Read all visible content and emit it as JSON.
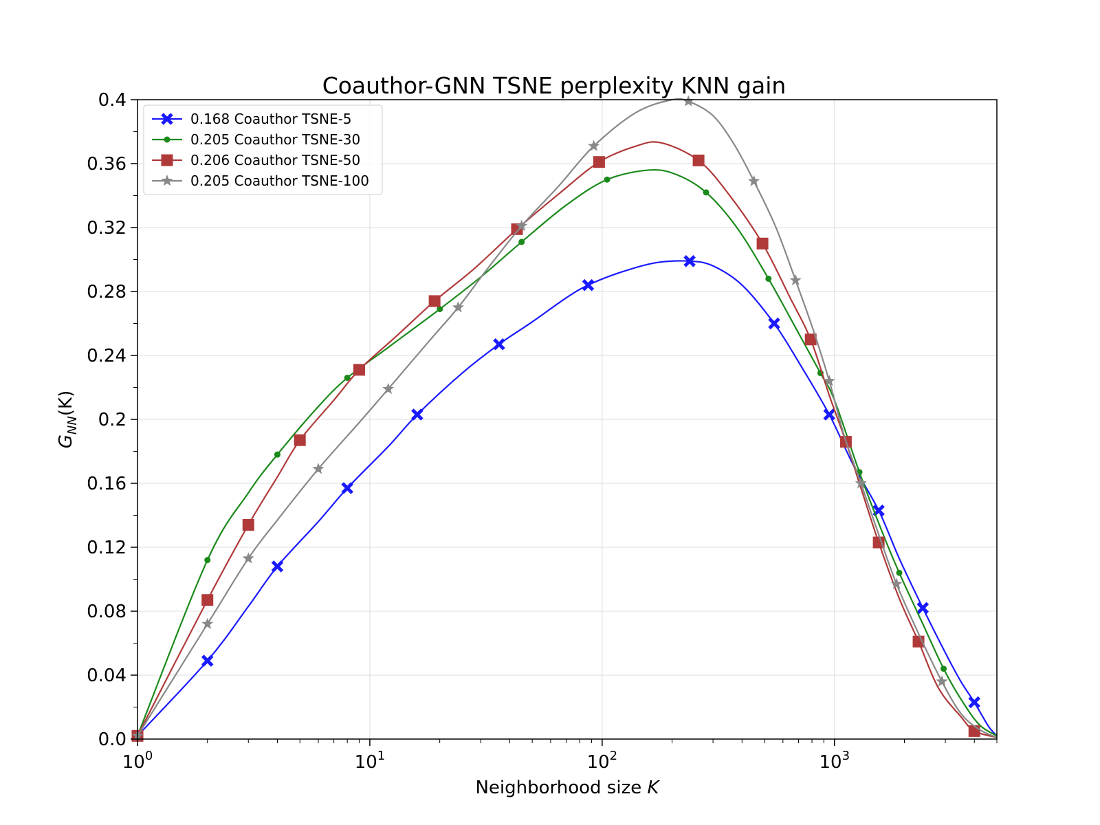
{
  "chart_data": {
    "type": "line",
    "title": "Coauthor-GNN TSNE perplexity KNN gain",
    "xlabel": "Neighborhood size",
    "xlabel_var": "K",
    "ylabel": "G_NN(K)",
    "ylabel_parts": {
      "base": "G",
      "sub": "NN",
      "arg": "(K)"
    },
    "x_scale": "log",
    "xlim": [
      1,
      5000
    ],
    "ylim": [
      0.0,
      0.4
    ],
    "x_ticks": [
      {
        "value": 1,
        "base": "10",
        "exp": "0"
      },
      {
        "value": 10,
        "base": "10",
        "exp": "1"
      },
      {
        "value": 100,
        "base": "10",
        "exp": "2"
      },
      {
        "value": 1000,
        "base": "10",
        "exp": "3"
      }
    ],
    "y_ticks": [
      {
        "value": 0.0,
        "label": "0.0"
      },
      {
        "value": 0.04,
        "label": "0.04"
      },
      {
        "value": 0.08,
        "label": "0.08"
      },
      {
        "value": 0.12,
        "label": "0.12"
      },
      {
        "value": 0.16,
        "label": "0.16"
      },
      {
        "value": 0.2,
        "label": "0.2"
      },
      {
        "value": 0.24,
        "label": "0.24"
      },
      {
        "value": 0.28,
        "label": "0.28"
      },
      {
        "value": 0.32,
        "label": "0.32"
      },
      {
        "value": 0.36,
        "label": "0.36"
      },
      {
        "value": 0.4,
        "label": "0.4"
      }
    ],
    "grid": true,
    "legend_position": "top-left",
    "series": [
      {
        "name": "0.168 Coauthor TSNE-5",
        "color": "#1a1aff",
        "marker": "x",
        "curve": [
          [
            1,
            0.002
          ],
          [
            2,
            0.049
          ],
          [
            3,
            0.083
          ],
          [
            4,
            0.108
          ],
          [
            6,
            0.136
          ],
          [
            8,
            0.157
          ],
          [
            12,
            0.183
          ],
          [
            16,
            0.203
          ],
          [
            25,
            0.229
          ],
          [
            36,
            0.247
          ],
          [
            50,
            0.261
          ],
          [
            70,
            0.276
          ],
          [
            87,
            0.284
          ],
          [
            120,
            0.292
          ],
          [
            170,
            0.298
          ],
          [
            238,
            0.299
          ],
          [
            300,
            0.296
          ],
          [
            400,
            0.284
          ],
          [
            550,
            0.26
          ],
          [
            700,
            0.236
          ],
          [
            950,
            0.203
          ],
          [
            1200,
            0.172
          ],
          [
            1550,
            0.143
          ],
          [
            1900,
            0.113
          ],
          [
            2400,
            0.082
          ],
          [
            3000,
            0.054
          ],
          [
            3500,
            0.036
          ],
          [
            4000,
            0.023
          ],
          [
            4600,
            0.008
          ],
          [
            5000,
            0.002
          ]
        ],
        "markers": [
          [
            1,
            0.002
          ],
          [
            2,
            0.049
          ],
          [
            4,
            0.108
          ],
          [
            8,
            0.157
          ],
          [
            16,
            0.203
          ],
          [
            36,
            0.247
          ],
          [
            87,
            0.284
          ],
          [
            238,
            0.299
          ],
          [
            550,
            0.26
          ],
          [
            950,
            0.203
          ],
          [
            1550,
            0.143
          ],
          [
            2400,
            0.082
          ],
          [
            4000,
            0.023
          ]
        ]
      },
      {
        "name": "0.205 Coauthor TSNE-30",
        "color": "#1a8a1a",
        "marker": "dot",
        "curve": [
          [
            1,
            0.002
          ],
          [
            2,
            0.112
          ],
          [
            3,
            0.154
          ],
          [
            4,
            0.178
          ],
          [
            6,
            0.208
          ],
          [
            8,
            0.226
          ],
          [
            12,
            0.245
          ],
          [
            20,
            0.269
          ],
          [
            30,
            0.289
          ],
          [
            45,
            0.311
          ],
          [
            70,
            0.334
          ],
          [
            105,
            0.35
          ],
          [
            160,
            0.356
          ],
          [
            210,
            0.353
          ],
          [
            280,
            0.342
          ],
          [
            380,
            0.32
          ],
          [
            520,
            0.288
          ],
          [
            700,
            0.254
          ],
          [
            870,
            0.229
          ],
          [
            1000,
            0.212
          ],
          [
            1280,
            0.167
          ],
          [
            1600,
            0.13
          ],
          [
            1900,
            0.104
          ],
          [
            2400,
            0.072
          ],
          [
            2950,
            0.044
          ],
          [
            3500,
            0.025
          ],
          [
            4200,
            0.009
          ],
          [
            5000,
            0.002
          ]
        ],
        "markers": [
          [
            1,
            0.002
          ],
          [
            2,
            0.112
          ],
          [
            4,
            0.178
          ],
          [
            8,
            0.226
          ],
          [
            20,
            0.269
          ],
          [
            45,
            0.311
          ],
          [
            105,
            0.35
          ],
          [
            280,
            0.342
          ],
          [
            520,
            0.288
          ],
          [
            870,
            0.229
          ],
          [
            1280,
            0.167
          ],
          [
            1900,
            0.104
          ],
          [
            2950,
            0.044
          ]
        ]
      },
      {
        "name": "0.206 Coauthor TSNE-50",
        "color": "#b03a3a",
        "marker": "square",
        "curve": [
          [
            1,
            0.002
          ],
          [
            2,
            0.087
          ],
          [
            3,
            0.134
          ],
          [
            4,
            0.164
          ],
          [
            5,
            0.187
          ],
          [
            7,
            0.212
          ],
          [
            9,
            0.231
          ],
          [
            13,
            0.252
          ],
          [
            19,
            0.274
          ],
          [
            28,
            0.294
          ],
          [
            43,
            0.319
          ],
          [
            65,
            0.341
          ],
          [
            97,
            0.361
          ],
          [
            140,
            0.371
          ],
          [
            180,
            0.373
          ],
          [
            260,
            0.362
          ],
          [
            350,
            0.341
          ],
          [
            490,
            0.31
          ],
          [
            650,
            0.275
          ],
          [
            790,
            0.25
          ],
          [
            950,
            0.215
          ],
          [
            1120,
            0.186
          ],
          [
            1300,
            0.157
          ],
          [
            1550,
            0.123
          ],
          [
            1900,
            0.088
          ],
          [
            2300,
            0.061
          ],
          [
            2800,
            0.032
          ],
          [
            3500,
            0.014
          ],
          [
            4000,
            0.005
          ],
          [
            5000,
            0.001
          ]
        ],
        "markers": [
          [
            1,
            0.002
          ],
          [
            2,
            0.087
          ],
          [
            3,
            0.134
          ],
          [
            5,
            0.187
          ],
          [
            9,
            0.231
          ],
          [
            19,
            0.274
          ],
          [
            43,
            0.319
          ],
          [
            97,
            0.361
          ],
          [
            260,
            0.362
          ],
          [
            490,
            0.31
          ],
          [
            790,
            0.25
          ],
          [
            1120,
            0.186
          ],
          [
            1550,
            0.123
          ],
          [
            2300,
            0.061
          ],
          [
            4000,
            0.005
          ]
        ]
      },
      {
        "name": "0.205 Coauthor TSNE-100",
        "color": "#888888",
        "marker": "star",
        "curve": [
          [
            1,
            0.002
          ],
          [
            2,
            0.072
          ],
          [
            3,
            0.113
          ],
          [
            4,
            0.137
          ],
          [
            6,
            0.169
          ],
          [
            9,
            0.198
          ],
          [
            12,
            0.219
          ],
          [
            18,
            0.249
          ],
          [
            24,
            0.27
          ],
          [
            32,
            0.294
          ],
          [
            45,
            0.321
          ],
          [
            65,
            0.346
          ],
          [
            92,
            0.371
          ],
          [
            140,
            0.392
          ],
          [
            200,
            0.4
          ],
          [
            235,
            0.399
          ],
          [
            300,
            0.39
          ],
          [
            370,
            0.372
          ],
          [
            450,
            0.349
          ],
          [
            560,
            0.32
          ],
          [
            680,
            0.287
          ],
          [
            810,
            0.256
          ],
          [
            950,
            0.224
          ],
          [
            1100,
            0.19
          ],
          [
            1300,
            0.16
          ],
          [
            1550,
            0.128
          ],
          [
            1850,
            0.097
          ],
          [
            2300,
            0.066
          ],
          [
            2900,
            0.036
          ],
          [
            3500,
            0.016
          ],
          [
            4200,
            0.006
          ],
          [
            5000,
            0.001
          ]
        ],
        "markers": [
          [
            1,
            0.002
          ],
          [
            2,
            0.072
          ],
          [
            3,
            0.113
          ],
          [
            6,
            0.169
          ],
          [
            12,
            0.219
          ],
          [
            24,
            0.27
          ],
          [
            45,
            0.321
          ],
          [
            92,
            0.371
          ],
          [
            235,
            0.399
          ],
          [
            450,
            0.349
          ],
          [
            680,
            0.287
          ],
          [
            950,
            0.224
          ],
          [
            1300,
            0.16
          ],
          [
            1850,
            0.097
          ],
          [
            2900,
            0.036
          ]
        ]
      }
    ]
  }
}
